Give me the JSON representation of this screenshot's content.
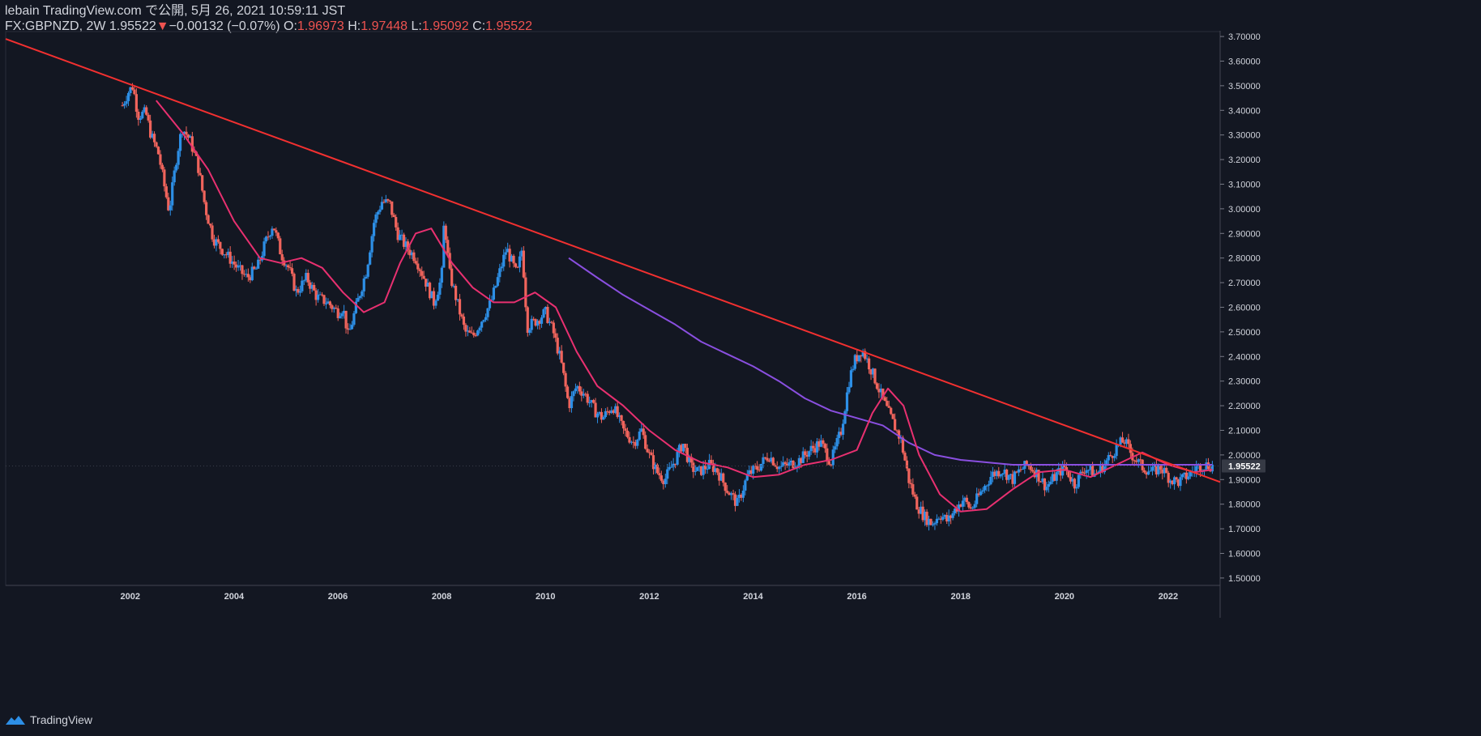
{
  "header": {
    "line1": "lebain TradingView.com で公開, 5月 26, 2021 10:59:11 JST",
    "symbol": "FX:GBPNZD, 2W 1.95522",
    "change_arrow": "▼",
    "change": "−0.00132 (−0.07%)",
    "o_label": " O:",
    "o_value": "1.96973",
    "h_label": " H:",
    "h_value": "1.97448",
    "l_label": " L:",
    "l_value": "1.95092",
    "c_label": " C:",
    "c_value": "1.95522"
  },
  "footer": {
    "brand": "TradingView"
  },
  "colors": {
    "background": "#131722",
    "up": "#2d8fe6",
    "down": "#f0645c",
    "trendline": "#f23030",
    "ma_fast": "#e83070",
    "ma_slow": "#8a4fe0",
    "price_tag": "#363a45"
  },
  "chart_data": {
    "type": "candlestick",
    "symbol": "FX:GBPNZD",
    "timeframe": "2W",
    "x_ticks": [
      "2002",
      "2004",
      "2006",
      "2008",
      "2010",
      "2012",
      "2014",
      "2016",
      "2018",
      "2020",
      "2022"
    ],
    "y_ticks": [
      "1.50000",
      "1.60000",
      "1.70000",
      "1.80000",
      "1.90000",
      "2.00000",
      "2.10000",
      "2.20000",
      "2.30000",
      "2.40000",
      "2.50000",
      "2.60000",
      "2.70000",
      "2.80000",
      "2.90000",
      "3.00000",
      "3.10000",
      "3.20000",
      "3.30000",
      "3.40000",
      "3.50000",
      "3.60000",
      "3.70000"
    ],
    "ylim": [
      1.47,
      3.72
    ],
    "xlim": [
      1999.6,
      2023.0
    ],
    "last_price": "1.95522",
    "close_path": [
      [
        2001.85,
        3.42
      ],
      [
        2001.95,
        3.47
      ],
      [
        2002.05,
        3.5
      ],
      [
        2002.15,
        3.38
      ],
      [
        2002.3,
        3.39
      ],
      [
        2002.4,
        3.3
      ],
      [
        2002.55,
        3.22
      ],
      [
        2002.65,
        3.1
      ],
      [
        2002.75,
        2.99
      ],
      [
        2002.9,
        3.22
      ],
      [
        2003.0,
        3.33
      ],
      [
        2003.15,
        3.28
      ],
      [
        2003.3,
        3.18
      ],
      [
        2003.45,
        3.0
      ],
      [
        2003.6,
        2.88
      ],
      [
        2003.75,
        2.84
      ],
      [
        2003.95,
        2.79
      ],
      [
        2004.1,
        2.75
      ],
      [
        2004.25,
        2.72
      ],
      [
        2004.45,
        2.76
      ],
      [
        2004.6,
        2.86
      ],
      [
        2004.75,
        2.94
      ],
      [
        2004.9,
        2.82
      ],
      [
        2005.05,
        2.76
      ],
      [
        2005.2,
        2.66
      ],
      [
        2005.4,
        2.72
      ],
      [
        2005.6,
        2.64
      ],
      [
        2005.8,
        2.62
      ],
      [
        2006.0,
        2.58
      ],
      [
        2006.1,
        2.6
      ],
      [
        2006.2,
        2.48
      ],
      [
        2006.35,
        2.6
      ],
      [
        2006.55,
        2.75
      ],
      [
        2006.7,
        2.95
      ],
      [
        2006.85,
        3.03
      ],
      [
        2007.0,
        3.02
      ],
      [
        2007.15,
        2.9
      ],
      [
        2007.3,
        2.85
      ],
      [
        2007.5,
        2.8
      ],
      [
        2007.7,
        2.7
      ],
      [
        2007.85,
        2.62
      ],
      [
        2008.0,
        2.72
      ],
      [
        2008.05,
        2.96
      ],
      [
        2008.15,
        2.74
      ],
      [
        2008.3,
        2.62
      ],
      [
        2008.45,
        2.5
      ],
      [
        2008.6,
        2.48
      ],
      [
        2008.8,
        2.56
      ],
      [
        2008.95,
        2.62
      ],
      [
        2009.1,
        2.73
      ],
      [
        2009.25,
        2.84
      ],
      [
        2009.45,
        2.73
      ],
      [
        2009.55,
        2.84
      ],
      [
        2009.65,
        2.52
      ],
      [
        2009.85,
        2.55
      ],
      [
        2010.0,
        2.58
      ],
      [
        2010.15,
        2.5
      ],
      [
        2010.3,
        2.38
      ],
      [
        2010.45,
        2.2
      ],
      [
        2010.6,
        2.28
      ],
      [
        2010.75,
        2.25
      ],
      [
        2010.95,
        2.18
      ],
      [
        2011.1,
        2.15
      ],
      [
        2011.3,
        2.2
      ],
      [
        2011.5,
        2.1
      ],
      [
        2011.7,
        2.05
      ],
      [
        2011.85,
        2.1
      ],
      [
        2012.0,
        2.0
      ],
      [
        2012.15,
        1.93
      ],
      [
        2012.3,
        1.9
      ],
      [
        2012.5,
        1.98
      ],
      [
        2012.65,
        2.05
      ],
      [
        2012.8,
        1.95
      ],
      [
        2012.95,
        1.93
      ],
      [
        2013.15,
        1.96
      ],
      [
        2013.3,
        1.94
      ],
      [
        2013.5,
        1.86
      ],
      [
        2013.7,
        1.8
      ],
      [
        2013.9,
        1.92
      ],
      [
        2014.1,
        1.95
      ],
      [
        2014.3,
        2.0
      ],
      [
        2014.5,
        1.95
      ],
      [
        2014.7,
        1.96
      ],
      [
        2014.9,
        1.98
      ],
      [
        2015.1,
        2.02
      ],
      [
        2015.3,
        2.05
      ],
      [
        2015.5,
        1.97
      ],
      [
        2015.7,
        2.1
      ],
      [
        2015.85,
        2.3
      ],
      [
        2015.95,
        2.38
      ],
      [
        2016.1,
        2.43
      ],
      [
        2016.25,
        2.36
      ],
      [
        2016.4,
        2.28
      ],
      [
        2016.55,
        2.2
      ],
      [
        2016.7,
        2.13
      ],
      [
        2016.85,
        2.06
      ],
      [
        2017.0,
        1.9
      ],
      [
        2017.15,
        1.8
      ],
      [
        2017.3,
        1.75
      ],
      [
        2017.45,
        1.72
      ],
      [
        2017.6,
        1.76
      ],
      [
        2017.75,
        1.73
      ],
      [
        2017.9,
        1.78
      ],
      [
        2018.05,
        1.82
      ],
      [
        2018.2,
        1.78
      ],
      [
        2018.4,
        1.85
      ],
      [
        2018.6,
        1.92
      ],
      [
        2018.8,
        1.94
      ],
      [
        2019.0,
        1.9
      ],
      [
        2019.15,
        1.94
      ],
      [
        2019.3,
        1.96
      ],
      [
        2019.45,
        1.93
      ],
      [
        2019.65,
        1.87
      ],
      [
        2019.85,
        1.92
      ],
      [
        2020.0,
        1.95
      ],
      [
        2020.2,
        1.88
      ],
      [
        2020.4,
        1.95
      ],
      [
        2020.6,
        1.92
      ],
      [
        2020.8,
        1.97
      ],
      [
        2021.0,
        2.03
      ],
      [
        2021.15,
        2.06
      ],
      [
        2021.3,
        2.0
      ],
      [
        2021.5,
        1.95
      ],
      [
        2021.7,
        1.93
      ],
      [
        2021.85,
        1.95
      ],
      [
        2022.05,
        1.9
      ],
      [
        2022.2,
        1.89
      ],
      [
        2022.4,
        1.92
      ],
      [
        2022.55,
        1.95
      ],
      [
        2022.7,
        1.96
      ],
      [
        2022.85,
        1.95522
      ]
    ],
    "trendline": [
      [
        1999.6,
        3.69
      ],
      [
        2023.0,
        1.89
      ]
    ],
    "ma_fast": [
      [
        2002.5,
        3.44
      ],
      [
        2003.0,
        3.31
      ],
      [
        2003.5,
        3.16
      ],
      [
        2004.0,
        2.95
      ],
      [
        2004.5,
        2.8
      ],
      [
        2004.9,
        2.78
      ],
      [
        2005.3,
        2.8
      ],
      [
        2005.7,
        2.76
      ],
      [
        2006.1,
        2.66
      ],
      [
        2006.5,
        2.58
      ],
      [
        2006.9,
        2.62
      ],
      [
        2007.2,
        2.78
      ],
      [
        2007.5,
        2.9
      ],
      [
        2007.8,
        2.92
      ],
      [
        2008.2,
        2.78
      ],
      [
        2008.6,
        2.68
      ],
      [
        2009.0,
        2.62
      ],
      [
        2009.4,
        2.62
      ],
      [
        2009.8,
        2.66
      ],
      [
        2010.2,
        2.6
      ],
      [
        2010.6,
        2.42
      ],
      [
        2011.0,
        2.28
      ],
      [
        2011.5,
        2.2
      ],
      [
        2012.0,
        2.1
      ],
      [
        2012.5,
        2.02
      ],
      [
        2013.0,
        1.97
      ],
      [
        2013.5,
        1.95
      ],
      [
        2014.0,
        1.91
      ],
      [
        2014.5,
        1.92
      ],
      [
        2015.0,
        1.96
      ],
      [
        2015.5,
        1.98
      ],
      [
        2016.0,
        2.02
      ],
      [
        2016.3,
        2.17
      ],
      [
        2016.6,
        2.27
      ],
      [
        2016.9,
        2.2
      ],
      [
        2017.2,
        2.0
      ],
      [
        2017.6,
        1.84
      ],
      [
        2018.0,
        1.77
      ],
      [
        2018.5,
        1.78
      ],
      [
        2019.0,
        1.86
      ],
      [
        2019.5,
        1.93
      ],
      [
        2020.0,
        1.94
      ],
      [
        2020.5,
        1.91
      ],
      [
        2021.0,
        1.96
      ],
      [
        2021.5,
        2.01
      ],
      [
        2022.0,
        1.96
      ],
      [
        2022.5,
        1.93
      ],
      [
        2022.85,
        1.94
      ]
    ],
    "ma_slow": [
      [
        2010.45,
        2.8
      ],
      [
        2011.0,
        2.72
      ],
      [
        2011.5,
        2.65
      ],
      [
        2012.0,
        2.59
      ],
      [
        2012.5,
        2.53
      ],
      [
        2013.0,
        2.46
      ],
      [
        2013.5,
        2.41
      ],
      [
        2014.0,
        2.36
      ],
      [
        2014.5,
        2.3
      ],
      [
        2015.0,
        2.23
      ],
      [
        2015.5,
        2.18
      ],
      [
        2016.0,
        2.15
      ],
      [
        2016.5,
        2.12
      ],
      [
        2017.0,
        2.05
      ],
      [
        2017.5,
        2.0
      ],
      [
        2018.0,
        1.98
      ],
      [
        2018.5,
        1.97
      ],
      [
        2019.0,
        1.96
      ],
      [
        2019.5,
        1.96
      ],
      [
        2020.0,
        1.96
      ],
      [
        2020.5,
        1.96
      ],
      [
        2021.0,
        1.96
      ],
      [
        2021.5,
        1.96
      ],
      [
        2022.0,
        1.96
      ],
      [
        2022.5,
        1.96
      ],
      [
        2022.85,
        1.96
      ]
    ]
  }
}
